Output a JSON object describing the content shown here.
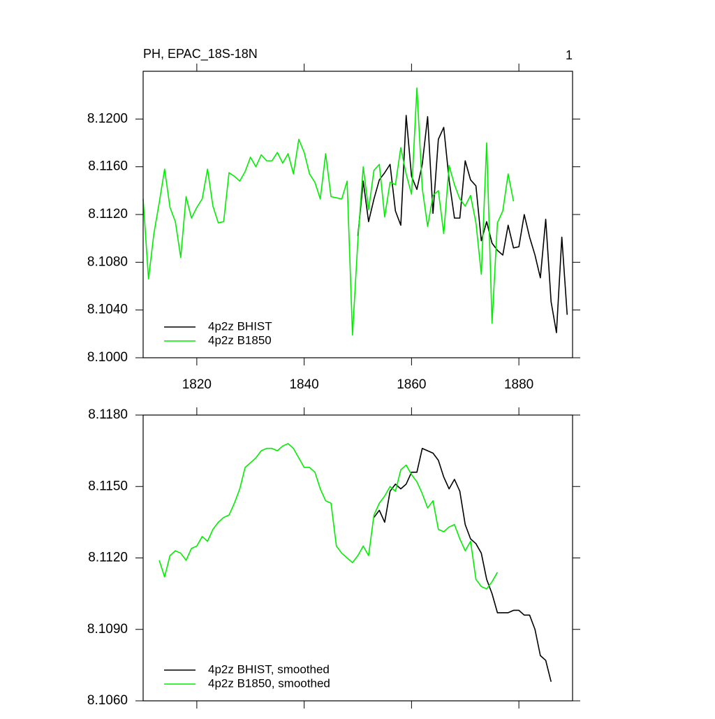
{
  "chart_data": [
    {
      "type": "line",
      "title": "PH, EPAC_18S-18N",
      "right_title": "1",
      "xlim": [
        1810,
        1890
      ],
      "xticks": [
        1820,
        1840,
        1860,
        1880
      ],
      "xtick_labels": true,
      "ylim": [
        8.1,
        8.124
      ],
      "yticks": [
        {
          "value": 8.1,
          "label": "8.1000"
        },
        {
          "value": 8.104,
          "label": "8.1040"
        },
        {
          "value": 8.108,
          "label": "8.1080"
        },
        {
          "value": 8.112,
          "label": "8.1120"
        },
        {
          "value": 8.116,
          "label": "8.1160"
        },
        {
          "value": 8.12,
          "label": "8.1200"
        }
      ],
      "legend": "lower left",
      "series": [
        {
          "name": "4p2z BHIST",
          "color": "#000000",
          "x": [
            1850,
            1851,
            1852,
            1853,
            1854,
            1855,
            1856,
            1857,
            1858,
            1859,
            1860,
            1861,
            1862,
            1863,
            1864,
            1865,
            1866,
            1867,
            1868,
            1869,
            1870,
            1871,
            1872,
            1873,
            1874,
            1875,
            1876,
            1877,
            1878,
            1879,
            1880,
            1881,
            1882,
            1883,
            1884,
            1885,
            1886,
            1887,
            1888,
            1889
          ],
          "values": [
            8.1102,
            8.1148,
            8.1114,
            8.1133,
            8.1149,
            8.1155,
            8.1162,
            8.1123,
            8.1111,
            8.1203,
            8.1152,
            8.1141,
            8.1162,
            8.1202,
            8.1121,
            8.1183,
            8.1193,
            8.1149,
            8.1117,
            8.1117,
            8.1165,
            8.1149,
            8.1144,
            8.1098,
            8.1114,
            8.1096,
            8.109,
            8.1086,
            8.1111,
            8.1092,
            8.1093,
            8.112,
            8.1101,
            8.1086,
            8.1067,
            8.1116,
            8.1047,
            8.1021,
            8.1101,
            8.1036
          ]
        },
        {
          "name": "4p2z B1850",
          "color": "#00ee00",
          "x": [
            1810,
            1811,
            1812,
            1813,
            1814,
            1815,
            1816,
            1817,
            1818,
            1819,
            1820,
            1821,
            1822,
            1823,
            1824,
            1825,
            1826,
            1827,
            1828,
            1829,
            1830,
            1831,
            1832,
            1833,
            1834,
            1835,
            1836,
            1837,
            1838,
            1839,
            1840,
            1841,
            1842,
            1843,
            1844,
            1845,
            1846,
            1847,
            1848,
            1849,
            1850,
            1851,
            1852,
            1853,
            1854,
            1855,
            1856,
            1857,
            1858,
            1859,
            1860,
            1861,
            1862,
            1863,
            1864,
            1865,
            1866,
            1867,
            1868,
            1869,
            1870,
            1871,
            1872,
            1873,
            1874,
            1875,
            1876,
            1877,
            1878,
            1879
          ],
          "values": [
            8.1133,
            8.1066,
            8.1104,
            8.113,
            8.1158,
            8.1126,
            8.1114,
            8.1084,
            8.1135,
            8.1117,
            8.1126,
            8.1133,
            8.1158,
            8.1127,
            8.1113,
            8.1114,
            8.1155,
            8.1152,
            8.1148,
            8.1156,
            8.1168,
            8.116,
            8.117,
            8.1165,
            8.1165,
            8.1172,
            8.1163,
            8.1171,
            8.1154,
            8.1183,
            8.1172,
            8.1154,
            8.1147,
            8.1133,
            8.1171,
            8.1135,
            8.1134,
            8.1133,
            8.1148,
            8.1019,
            8.1098,
            8.116,
            8.1124,
            8.1157,
            8.1162,
            8.1118,
            8.1147,
            8.1145,
            8.1176,
            8.1154,
            8.1137,
            8.1226,
            8.1142,
            8.111,
            8.1136,
            8.114,
            8.1104,
            8.1161,
            8.1145,
            8.1133,
            8.1127,
            8.1136,
            8.1113,
            8.107,
            8.118,
            8.1029,
            8.1113,
            8.1123,
            8.1154,
            8.1131
          ]
        }
      ]
    },
    {
      "type": "line",
      "xlim": [
        1810,
        1890
      ],
      "xticks": [
        1820,
        1840,
        1860,
        1880
      ],
      "xtick_labels": false,
      "ylim": [
        8.106,
        8.118
      ],
      "yticks": [
        {
          "value": 8.106,
          "label": "8.1060"
        },
        {
          "value": 8.109,
          "label": "8.1090"
        },
        {
          "value": 8.112,
          "label": "8.1120"
        },
        {
          "value": 8.115,
          "label": "8.1150"
        },
        {
          "value": 8.118,
          "label": "8.1180"
        }
      ],
      "legend": "lower left",
      "series": [
        {
          "name": "4p2z BHIST, smoothed",
          "color": "#000000",
          "x": [
            1853,
            1854,
            1855,
            1856,
            1857,
            1858,
            1859,
            1860,
            1861,
            1862,
            1863,
            1864,
            1865,
            1866,
            1867,
            1868,
            1869,
            1870,
            1871,
            1872,
            1873,
            1874,
            1875,
            1876,
            1877,
            1878,
            1879,
            1880,
            1881,
            1882,
            1883,
            1884,
            1885,
            1886
          ],
          "values": [
            8.1137,
            8.114,
            8.1135,
            8.1148,
            8.1151,
            8.1149,
            8.1151,
            8.1156,
            8.1156,
            8.1166,
            8.1165,
            8.1164,
            8.1161,
            8.1154,
            8.1149,
            8.1153,
            8.1148,
            8.1134,
            8.1128,
            8.1126,
            8.1122,
            8.1111,
            8.1105,
            8.1097,
            8.1097,
            8.1097,
            8.1098,
            8.1098,
            8.1096,
            8.1096,
            8.109,
            8.1079,
            8.1077,
            8.1068
          ]
        },
        {
          "name": "4p2z B1850, smoothed",
          "color": "#00ee00",
          "x": [
            1813,
            1814,
            1815,
            1816,
            1817,
            1818,
            1819,
            1820,
            1821,
            1822,
            1823,
            1824,
            1825,
            1826,
            1827,
            1828,
            1829,
            1830,
            1831,
            1832,
            1833,
            1834,
            1835,
            1836,
            1837,
            1838,
            1839,
            1840,
            1841,
            1842,
            1843,
            1844,
            1845,
            1846,
            1847,
            1848,
            1849,
            1850,
            1851,
            1852,
            1853,
            1854,
            1855,
            1856,
            1857,
            1858,
            1859,
            1860,
            1861,
            1862,
            1863,
            1864,
            1865,
            1866,
            1867,
            1868,
            1869,
            1870,
            1871,
            1872,
            1873,
            1874,
            1875,
            1876
          ],
          "values": [
            8.1119,
            8.1112,
            8.1121,
            8.1123,
            8.1122,
            8.1119,
            8.1124,
            8.1125,
            8.1129,
            8.1127,
            8.1132,
            8.1135,
            8.1137,
            8.1138,
            8.1143,
            8.1149,
            8.1158,
            8.116,
            8.1162,
            8.1165,
            8.1166,
            8.1166,
            8.1165,
            8.1167,
            8.1168,
            8.1166,
            8.1162,
            8.1158,
            8.1158,
            8.1156,
            8.1149,
            8.1144,
            8.1143,
            8.1125,
            8.1122,
            8.112,
            8.1118,
            8.1121,
            8.1125,
            8.1121,
            8.1138,
            8.1143,
            8.1146,
            8.115,
            8.1148,
            8.1157,
            8.1159,
            8.1155,
            8.1152,
            8.1147,
            8.1141,
            8.1144,
            8.1132,
            8.1131,
            8.1133,
            8.1134,
            8.1128,
            8.1123,
            8.1127,
            8.1111,
            8.1108,
            8.1107,
            8.111,
            8.1114
          ]
        }
      ]
    }
  ]
}
